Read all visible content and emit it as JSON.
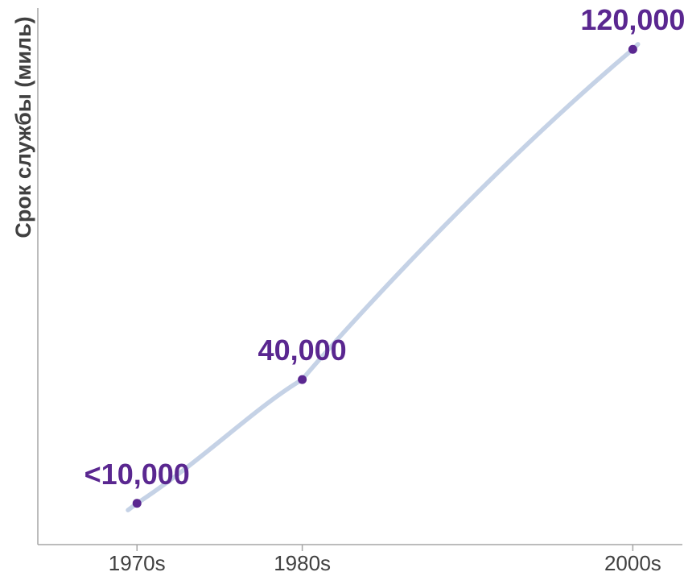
{
  "chart_data": {
    "type": "line",
    "title": "",
    "xlabel": "",
    "ylabel": "Срок службы (миль)",
    "categories": [
      "1970s",
      "1980s",
      "2000s"
    ],
    "x": [
      1970,
      1980,
      2000
    ],
    "values": [
      10000,
      40000,
      120000
    ],
    "data_labels": [
      "<10,000",
      "40,000",
      "120,000"
    ],
    "xlim": [
      1964,
      2003
    ],
    "ylim": [
      0,
      130000
    ],
    "grid": false,
    "legend": "none",
    "line_color": "#c5d2e6",
    "point_color": "#5a2790",
    "label_color": "#5a2790",
    "axis_color": "#a6a6a6",
    "text_color": "#404040"
  }
}
